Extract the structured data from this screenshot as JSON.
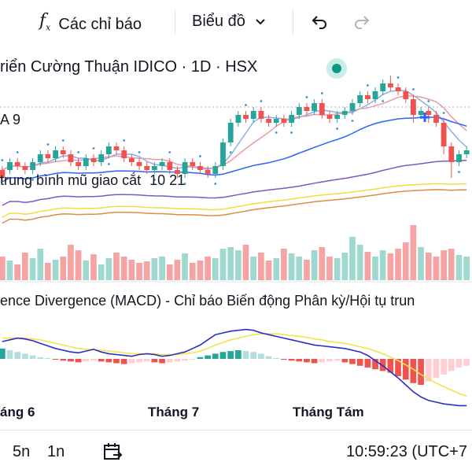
{
  "toolbar": {
    "indicators_label": "Các chỉ báo",
    "chart_type_label": "Biểu đồ"
  },
  "legend": {
    "title": "riển Cường Thuận IDICO · 1D · HSX",
    "ma_label": "A 9",
    "ema_label": "trung bình mũ giao cắt",
    "ema_params": "10 21",
    "macd_label": "ence Divergence (MACD) - Chỉ báo Biến động Phân kỳ/Hội tụ trun"
  },
  "time_axis": {
    "labels": [
      "áng 6",
      "Tháng 7",
      "Tháng Tám"
    ]
  },
  "bottom": {
    "range_5n": "5n",
    "range_1n": "1n",
    "clock": "10:59:23 (UTC+7"
  },
  "colors": {
    "up": "#26a69a",
    "down": "#ef5350",
    "volume_up": "#9fd8cf",
    "volume_down": "#f5a3a3",
    "macd_line": "#2a2ec7",
    "signal_line": "#f2e44b",
    "ema_fast": "#2962ff",
    "ema_slow": "#7e57c2",
    "ma_long": "#f2dd3a",
    "ma_orange": "#d98e43"
  },
  "chart_data": {
    "type": "candlestick",
    "title": "riển Cường Thuận IDICO · 1D · HSX",
    "x_ticks": [
      "áng 6",
      "Tháng 7",
      "Tháng Tám"
    ],
    "candles": [
      [
        10,
        12,
        9,
        13,
        "d"
      ],
      [
        12,
        14,
        11,
        15,
        "u"
      ],
      [
        14,
        13,
        12,
        15,
        "d"
      ],
      [
        13,
        12,
        11,
        14,
        "d"
      ],
      [
        12,
        14,
        11,
        15,
        "u"
      ],
      [
        14,
        16,
        13,
        17,
        "u"
      ],
      [
        16,
        15,
        14,
        17,
        "d"
      ],
      [
        15,
        17,
        14,
        18,
        "u"
      ],
      [
        17,
        16,
        15,
        18,
        "d"
      ],
      [
        16,
        14,
        13,
        17,
        "d"
      ],
      [
        14,
        13,
        12,
        15,
        "d"
      ],
      [
        13,
        15,
        12,
        16,
        "u"
      ],
      [
        15,
        14,
        13,
        16,
        "d"
      ],
      [
        14,
        16,
        13,
        17,
        "u"
      ],
      [
        16,
        18,
        15,
        19,
        "u"
      ],
      [
        18,
        17,
        16,
        19,
        "d"
      ],
      [
        17,
        15,
        14,
        18,
        "d"
      ],
      [
        15,
        14,
        13,
        16,
        "d"
      ],
      [
        14,
        13,
        12,
        15,
        "d"
      ],
      [
        13,
        12,
        11,
        14,
        "d"
      ],
      [
        12,
        13,
        11,
        14,
        "u"
      ],
      [
        13,
        14,
        12,
        15,
        "u"
      ],
      [
        14,
        12,
        11,
        15,
        "d"
      ],
      [
        12,
        11,
        10,
        13,
        "d"
      ],
      [
        11,
        14,
        10,
        15,
        "u"
      ],
      [
        14,
        13,
        12,
        15,
        "d"
      ],
      [
        13,
        12,
        11,
        14,
        "d"
      ],
      [
        12,
        11,
        10,
        13,
        "d"
      ],
      [
        11,
        13,
        10,
        14,
        "u"
      ],
      [
        13,
        19,
        12,
        20,
        "u"
      ],
      [
        19,
        24,
        18,
        25,
        "u"
      ],
      [
        24,
        26,
        23,
        27,
        "u"
      ],
      [
        26,
        25,
        24,
        27,
        "d"
      ],
      [
        25,
        27,
        24,
        28,
        "u"
      ],
      [
        27,
        25,
        24,
        28,
        "d"
      ],
      [
        25,
        24,
        23,
        26,
        "d"
      ],
      [
        24,
        25,
        23,
        26,
        "u"
      ],
      [
        25,
        24,
        23,
        26,
        "d"
      ],
      [
        24,
        26,
        23,
        27,
        "u"
      ],
      [
        26,
        28,
        25,
        29,
        "u"
      ],
      [
        28,
        27,
        26,
        29,
        "d"
      ],
      [
        27,
        29,
        26,
        30,
        "u"
      ],
      [
        29,
        26,
        25,
        30,
        "d"
      ],
      [
        26,
        25,
        24,
        27,
        "d"
      ],
      [
        25,
        26,
        24,
        27,
        "u"
      ],
      [
        26,
        27,
        25,
        28,
        "u"
      ],
      [
        27,
        29,
        26,
        30,
        "u"
      ],
      [
        29,
        31,
        28,
        32,
        "u"
      ],
      [
        31,
        30,
        29,
        32,
        "d"
      ],
      [
        30,
        32,
        29,
        33,
        "u"
      ],
      [
        32,
        34,
        31,
        35,
        "u"
      ],
      [
        34,
        33,
        32,
        36,
        "d"
      ],
      [
        33,
        32,
        31,
        34,
        "d"
      ],
      [
        32,
        30,
        29,
        33,
        "d"
      ],
      [
        30,
        26,
        24,
        31,
        "d"
      ],
      [
        26,
        27,
        25,
        28,
        "u"
      ],
      [
        27,
        26,
        24,
        28,
        "d"
      ],
      [
        26,
        24,
        23,
        27,
        "d"
      ],
      [
        24,
        18,
        16,
        25,
        "d"
      ],
      [
        18,
        14,
        10,
        19,
        "d"
      ],
      [
        14,
        16,
        13,
        17,
        "u"
      ],
      [
        16,
        17,
        15,
        18,
        "u"
      ]
    ],
    "volume": [
      30,
      25,
      20,
      35,
      28,
      40,
      22,
      26,
      30,
      45,
      38,
      25,
      33,
      20,
      28,
      35,
      30,
      26,
      22,
      24,
      28,
      30,
      20,
      26,
      34,
      22,
      25,
      30,
      28,
      40,
      42,
      38,
      45,
      30,
      35,
      25,
      28,
      40,
      34,
      30,
      26,
      38,
      42,
      30,
      28,
      35,
      55,
      45,
      36,
      30,
      38,
      34,
      40,
      48,
      70,
      42,
      35,
      30,
      38,
      40,
      32,
      30
    ],
    "macd_hist": [
      12,
      10,
      8,
      6,
      4,
      2,
      1,
      -1,
      -2,
      -3,
      -4,
      -3,
      -2,
      -3,
      -4,
      -5,
      -6,
      -5,
      -4,
      -3,
      -4,
      -5,
      -4,
      -3,
      -2,
      -1,
      2,
      4,
      6,
      8,
      9,
      10,
      9,
      8,
      6,
      3,
      1,
      -1,
      -2,
      -3,
      -4,
      -5,
      -4,
      -3,
      -2,
      -4,
      -6,
      -8,
      -10,
      -12,
      -14,
      -16,
      -20,
      -24,
      -28,
      -30,
      -26,
      -22,
      -18,
      -14,
      -10,
      -8
    ],
    "macd_line": [
      20,
      22,
      24,
      23,
      21,
      18,
      15,
      12,
      10,
      8,
      7,
      9,
      11,
      8,
      6,
      5,
      4,
      3,
      5,
      6,
      5,
      3,
      4,
      6,
      8,
      12,
      16,
      22,
      28,
      30,
      32,
      33,
      34,
      33,
      30,
      28,
      26,
      24,
      22,
      20,
      18,
      16,
      15,
      14,
      13,
      12,
      10,
      8,
      4,
      -2,
      -8,
      -15,
      -22,
      -30,
      -38,
      -44,
      -48,
      -50,
      -52,
      -53,
      -54,
      -54
    ],
    "signal_line": [
      24,
      24,
      24,
      24,
      23,
      22,
      20,
      18,
      16,
      14,
      12,
      11,
      11,
      10,
      9,
      8,
      7,
      6,
      6,
      6,
      6,
      5,
      5,
      5,
      6,
      7,
      9,
      12,
      16,
      19,
      22,
      24,
      26,
      28,
      29,
      29,
      29,
      28,
      27,
      26,
      25,
      23,
      22,
      20,
      19,
      18,
      16,
      14,
      12,
      9,
      6,
      2,
      -2,
      -7,
      -12,
      -18,
      -23,
      -28,
      -32,
      -36,
      -40,
      -43
    ]
  }
}
